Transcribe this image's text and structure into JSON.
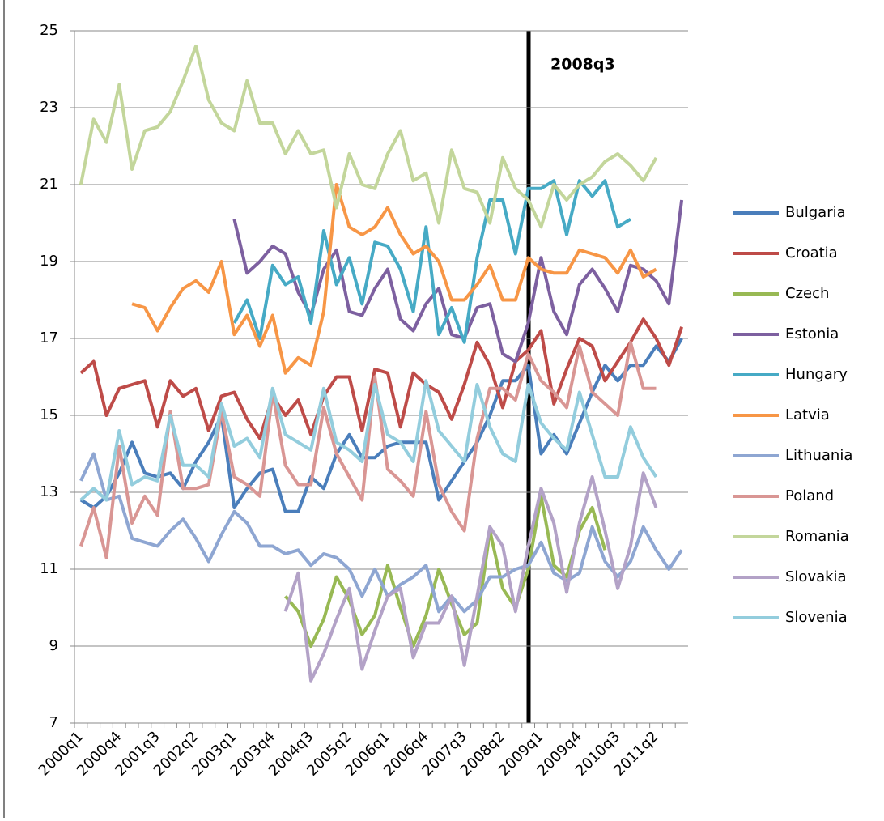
{
  "chart_data": {
    "type": "line",
    "categories": [
      "2000q1",
      null,
      null,
      "2000q4",
      null,
      null,
      "2001q3",
      null,
      null,
      "2002q2",
      null,
      null,
      "2003q1",
      null,
      null,
      "2003q4",
      null,
      null,
      "2004q3",
      null,
      null,
      "2005q2",
      null,
      null,
      "2006q1",
      null,
      null,
      "2006q4",
      null,
      null,
      "2007q3",
      null,
      null,
      "2008q2",
      null,
      null,
      "2009q1",
      null,
      null,
      "2009q4",
      null,
      null,
      "2010q3",
      null,
      null,
      "2011q2",
      null,
      null
    ],
    "ylim": [
      7,
      25
    ],
    "yticks": [
      7,
      9,
      11,
      13,
      15,
      17,
      19,
      21,
      23,
      25
    ],
    "grid": true,
    "legend": "right",
    "annotation": "2008q3",
    "series": [
      {
        "name": "Bulgaria",
        "color": "#4a7ebb",
        "values": [
          12.8,
          12.6,
          12.9,
          13.5,
          14.3,
          13.5,
          13.4,
          13.5,
          13.1,
          13.8,
          14.3,
          15.0,
          12.6,
          13.1,
          13.5,
          13.6,
          12.5,
          12.5,
          13.4,
          13.1,
          14.0,
          14.5,
          13.9,
          13.9,
          14.2,
          14.3,
          14.3,
          14.3,
          12.8,
          13.3,
          13.8,
          14.3,
          15.0,
          15.9,
          15.9,
          16.3,
          14.0,
          14.5,
          14.0,
          14.8,
          15.6,
          16.3,
          15.9,
          16.3,
          16.3,
          16.8,
          16.4,
          17.0
        ]
      },
      {
        "name": "Croatia",
        "color": "#be4b48",
        "values": [
          16.1,
          16.4,
          15.0,
          15.7,
          15.8,
          15.9,
          14.7,
          15.9,
          15.5,
          15.7,
          14.6,
          15.5,
          15.6,
          14.9,
          14.4,
          15.5,
          15.0,
          15.4,
          14.5,
          15.5,
          16.0,
          16.0,
          14.6,
          16.2,
          16.1,
          14.7,
          16.1,
          15.8,
          15.6,
          14.9,
          15.8,
          16.9,
          16.3,
          15.2,
          16.4,
          16.7,
          17.2,
          15.3,
          16.2,
          17.0,
          16.8,
          15.9,
          16.4,
          16.9,
          17.5,
          17.0,
          16.3,
          17.3
        ]
      },
      {
        "name": "Czech",
        "color": "#98b954",
        "values": [
          null,
          null,
          null,
          null,
          null,
          null,
          null,
          null,
          null,
          null,
          null,
          null,
          null,
          null,
          null,
          null,
          10.3,
          9.9,
          9.0,
          9.7,
          10.8,
          10.2,
          9.3,
          9.8,
          11.1,
          10.0,
          9.0,
          9.8,
          11.0,
          10.1,
          9.3,
          9.6,
          12.0,
          10.5,
          10.0,
          11.0,
          12.9,
          11.1,
          10.8,
          12.0,
          12.6,
          11.5,
          null,
          null,
          null,
          null,
          null,
          null
        ]
      },
      {
        "name": "Estonia",
        "color": "#7d60a0",
        "values": [
          null,
          null,
          null,
          null,
          null,
          null,
          null,
          null,
          null,
          null,
          null,
          null,
          20.1,
          18.7,
          19.0,
          19.4,
          19.2,
          18.2,
          17.6,
          18.8,
          19.3,
          17.7,
          17.6,
          18.3,
          18.8,
          17.5,
          17.2,
          17.9,
          18.3,
          17.1,
          17.0,
          17.8,
          17.9,
          16.6,
          16.4,
          17.4,
          19.1,
          17.7,
          17.1,
          18.4,
          18.8,
          18.3,
          17.7,
          18.9,
          18.8,
          18.5,
          17.9,
          20.6
        ]
      },
      {
        "name": "Hungary",
        "color": "#46aac5",
        "values": [
          null,
          null,
          null,
          null,
          null,
          null,
          null,
          null,
          null,
          null,
          null,
          null,
          17.4,
          18.0,
          17.0,
          18.9,
          18.4,
          18.6,
          17.4,
          19.8,
          18.4,
          19.1,
          17.9,
          19.5,
          19.4,
          18.8,
          17.7,
          19.9,
          17.1,
          17.8,
          16.9,
          19.1,
          20.6,
          20.6,
          19.2,
          20.9,
          20.9,
          21.1,
          19.7,
          21.1,
          20.7,
          21.1,
          19.9,
          20.1,
          null,
          null,
          null,
          null
        ]
      },
      {
        "name": "Latvia",
        "color": "#f79646",
        "values": [
          null,
          null,
          null,
          null,
          17.9,
          17.8,
          17.2,
          17.8,
          18.3,
          18.5,
          18.2,
          19.0,
          17.1,
          17.6,
          16.8,
          17.6,
          16.1,
          16.5,
          16.3,
          17.7,
          21.0,
          19.9,
          19.7,
          19.9,
          20.4,
          19.7,
          19.2,
          19.4,
          19.0,
          18.0,
          18.0,
          18.4,
          18.9,
          18.0,
          18.0,
          19.1,
          18.8,
          18.7,
          18.7,
          19.3,
          19.2,
          19.1,
          18.7,
          19.3,
          18.6,
          18.8,
          null,
          null
        ]
      },
      {
        "name": "Lithuania",
        "color": "#8ea6d2",
        "values": [
          13.3,
          14.0,
          12.8,
          12.9,
          11.8,
          11.7,
          11.6,
          12.0,
          12.3,
          11.8,
          11.2,
          11.9,
          12.5,
          12.2,
          11.6,
          11.6,
          11.4,
          11.5,
          11.1,
          11.4,
          11.3,
          11.0,
          10.3,
          11.0,
          10.3,
          10.6,
          10.8,
          11.1,
          9.9,
          10.3,
          9.9,
          10.2,
          10.8,
          10.8,
          11.0,
          11.1,
          11.7,
          10.9,
          10.7,
          10.9,
          12.1,
          11.2,
          10.8,
          11.2,
          12.1,
          11.5,
          11.0,
          11.5
        ]
      },
      {
        "name": "Poland",
        "color": "#d99694",
        "values": [
          11.6,
          12.6,
          11.3,
          14.2,
          12.2,
          12.9,
          12.4,
          15.1,
          13.1,
          13.1,
          13.2,
          15.1,
          13.4,
          13.2,
          12.9,
          15.6,
          13.7,
          13.2,
          13.2,
          15.2,
          14.0,
          13.4,
          12.8,
          16.0,
          13.6,
          13.3,
          12.9,
          15.1,
          13.2,
          12.5,
          12.0,
          14.4,
          15.7,
          15.7,
          15.4,
          16.6,
          15.9,
          15.6,
          15.2,
          16.8,
          15.6,
          15.3,
          15.0,
          16.9,
          15.7,
          15.7,
          null,
          null
        ]
      },
      {
        "name": "Romania",
        "color": "#c3d69b",
        "values": [
          21.0,
          22.7,
          22.1,
          23.6,
          21.4,
          22.4,
          22.5,
          22.9,
          23.7,
          24.6,
          23.2,
          22.6,
          22.4,
          23.7,
          22.6,
          22.6,
          21.8,
          22.4,
          21.8,
          21.9,
          20.4,
          21.8,
          21.0,
          20.9,
          21.8,
          22.4,
          21.1,
          21.3,
          20.0,
          21.9,
          20.9,
          20.8,
          20.0,
          21.7,
          20.9,
          20.6,
          19.9,
          21.0,
          20.6,
          21.0,
          21.2,
          21.6,
          21.8,
          21.5,
          21.1,
          21.7,
          null,
          null
        ]
      },
      {
        "name": "Slovakia",
        "color": "#b3a2c7",
        "values": [
          null,
          null,
          null,
          null,
          null,
          null,
          null,
          null,
          null,
          null,
          null,
          null,
          null,
          null,
          null,
          null,
          9.9,
          10.9,
          8.1,
          8.8,
          9.7,
          10.5,
          8.4,
          9.4,
          10.3,
          10.5,
          8.7,
          9.6,
          9.6,
          10.3,
          8.5,
          10.3,
          12.1,
          11.6,
          9.9,
          11.6,
          13.1,
          12.2,
          10.4,
          12.2,
          13.4,
          12.0,
          10.5,
          11.6,
          13.5,
          12.6,
          null,
          null
        ]
      },
      {
        "name": "Slovenia",
        "color": "#93cddd",
        "values": [
          12.8,
          13.1,
          12.8,
          14.6,
          13.2,
          13.4,
          13.3,
          15.0,
          13.7,
          13.7,
          13.4,
          15.3,
          14.2,
          14.4,
          13.9,
          15.7,
          14.5,
          14.3,
          14.1,
          15.7,
          14.3,
          14.1,
          13.8,
          15.8,
          14.5,
          14.3,
          13.8,
          15.9,
          14.6,
          14.2,
          13.8,
          15.8,
          14.7,
          14.0,
          13.8,
          15.8,
          14.8,
          14.4,
          14.1,
          15.6,
          14.5,
          13.4,
          13.4,
          14.7,
          13.9,
          13.4,
          null,
          null
        ]
      }
    ]
  }
}
